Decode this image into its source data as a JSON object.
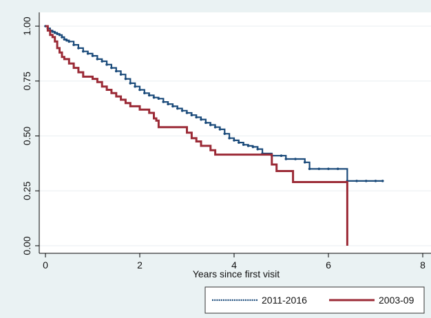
{
  "chart_data": {
    "type": "line",
    "step": true,
    "xlabel": "Years since first visit",
    "ylabel": "",
    "xlim": [
      0,
      8
    ],
    "ylim": [
      0,
      1
    ],
    "xticks": [
      {
        "value": 0,
        "label": "0"
      },
      {
        "value": 2,
        "label": "2"
      },
      {
        "value": 4,
        "label": "4"
      },
      {
        "value": 6,
        "label": "6"
      },
      {
        "value": 8,
        "label": "8"
      }
    ],
    "yticks": [
      {
        "value": 0,
        "label": "0.00"
      },
      {
        "value": 0.25,
        "label": "0.25"
      },
      {
        "value": 0.5,
        "label": "0.50"
      },
      {
        "value": 0.75,
        "label": "0.75"
      },
      {
        "value": 1,
        "label": "1.00"
      }
    ],
    "grid": "horizontal",
    "legend_position": "bottom-right",
    "colors": {
      "background": "#eaf2f3",
      "plot_background": "#ffffff",
      "gridline": "#e8eef0"
    },
    "series": [
      {
        "name": "2011-2016",
        "color": "#1a4a7a",
        "marker": "dots",
        "x": [
          0,
          0.05,
          0.1,
          0.15,
          0.2,
          0.25,
          0.3,
          0.35,
          0.4,
          0.45,
          0.5,
          0.6,
          0.7,
          0.8,
          0.9,
          1.0,
          1.1,
          1.2,
          1.3,
          1.4,
          1.5,
          1.6,
          1.7,
          1.8,
          1.9,
          2.0,
          2.1,
          2.2,
          2.3,
          2.4,
          2.5,
          2.6,
          2.7,
          2.8,
          2.9,
          3.0,
          3.1,
          3.2,
          3.3,
          3.4,
          3.5,
          3.6,
          3.7,
          3.8,
          3.9,
          4.0,
          4.1,
          4.2,
          4.3,
          4.4,
          4.5,
          4.6,
          4.8,
          5.0,
          5.1,
          5.3,
          5.5,
          5.6,
          5.8,
          6.0,
          6.2,
          6.4,
          6.6,
          6.8,
          7.0,
          7.15
        ],
        "y": [
          1.0,
          0.99,
          0.98,
          0.975,
          0.97,
          0.965,
          0.96,
          0.95,
          0.94,
          0.935,
          0.93,
          0.915,
          0.9,
          0.885,
          0.875,
          0.865,
          0.85,
          0.84,
          0.825,
          0.81,
          0.795,
          0.78,
          0.76,
          0.74,
          0.725,
          0.71,
          0.695,
          0.685,
          0.675,
          0.67,
          0.655,
          0.645,
          0.635,
          0.625,
          0.615,
          0.605,
          0.595,
          0.585,
          0.575,
          0.56,
          0.55,
          0.54,
          0.53,
          0.51,
          0.49,
          0.48,
          0.47,
          0.46,
          0.455,
          0.45,
          0.44,
          0.42,
          0.41,
          0.41,
          0.395,
          0.395,
          0.38,
          0.35,
          0.35,
          0.35,
          0.35,
          0.295,
          0.295,
          0.295,
          0.295,
          0.295
        ]
      },
      {
        "name": "2003-09",
        "color": "#9b2a36",
        "marker": "none",
        "x": [
          0,
          0.05,
          0.1,
          0.15,
          0.2,
          0.25,
          0.3,
          0.35,
          0.4,
          0.5,
          0.6,
          0.7,
          0.8,
          1.0,
          1.1,
          1.2,
          1.3,
          1.4,
          1.5,
          1.6,
          1.7,
          1.8,
          2.0,
          2.2,
          2.3,
          2.35,
          2.4,
          2.6,
          2.8,
          3.0,
          3.1,
          3.2,
          3.3,
          3.5,
          3.6,
          3.7,
          4.0,
          4.5,
          4.8,
          4.9,
          5.1,
          5.25,
          5.6,
          6.0,
          6.38,
          6.4
        ],
        "y": [
          1.0,
          0.98,
          0.96,
          0.95,
          0.93,
          0.9,
          0.88,
          0.86,
          0.85,
          0.83,
          0.81,
          0.79,
          0.77,
          0.76,
          0.745,
          0.725,
          0.71,
          0.695,
          0.68,
          0.665,
          0.65,
          0.635,
          0.62,
          0.605,
          0.58,
          0.57,
          0.54,
          0.54,
          0.54,
          0.515,
          0.49,
          0.475,
          0.455,
          0.435,
          0.415,
          0.415,
          0.415,
          0.415,
          0.37,
          0.34,
          0.34,
          0.29,
          0.29,
          0.29,
          0.29,
          0.0
        ]
      }
    ]
  }
}
